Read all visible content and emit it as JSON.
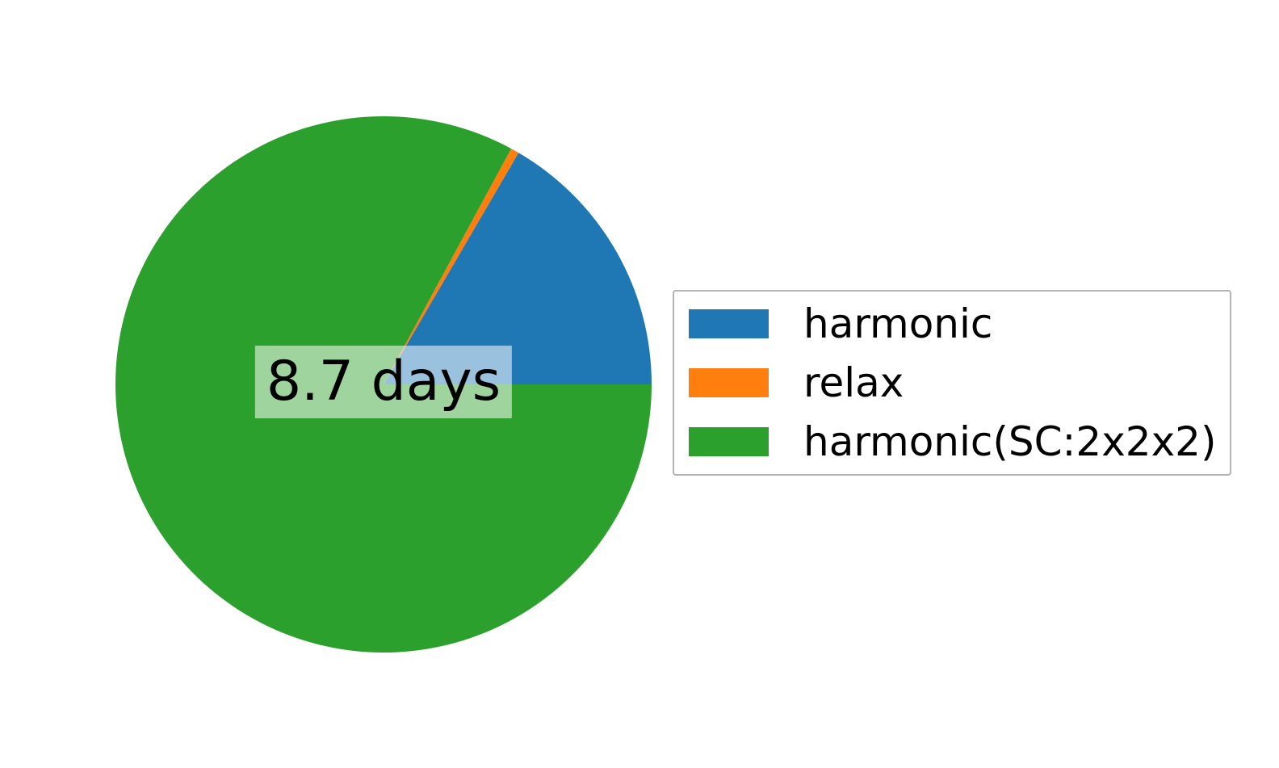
{
  "figure": {
    "background": "#ffffff"
  },
  "chart_data": {
    "type": "pie",
    "title": "",
    "center_label": "8.7 days",
    "center_label_background": "rgba(255,255,255,0.55)",
    "center_label_color": "#000000",
    "start_angle": 0,
    "direction": "counterclockwise",
    "legend_position": "center right",
    "slices": [
      {
        "label": "harmonic",
        "color": "#1f77b4",
        "percent": 16.6
      },
      {
        "label": "relax",
        "color": "#ff7f0e",
        "percent": 0.5
      },
      {
        "label": "harmonic(SC:2x2x2)",
        "color": "#2ca02c",
        "percent": 82.9
      }
    ]
  },
  "legend": {
    "border_color": "#b4b4b4",
    "background": "#ffffff"
  }
}
